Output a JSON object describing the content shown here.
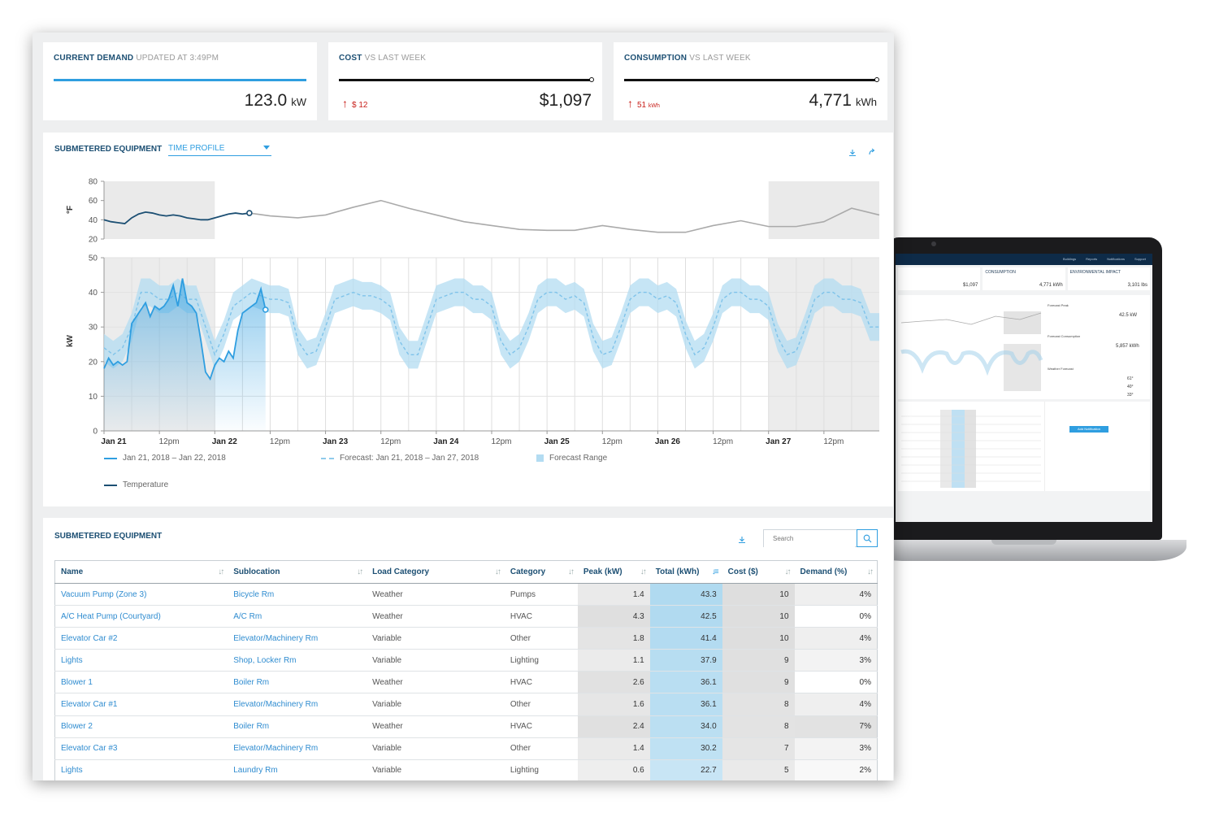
{
  "kpis": [
    {
      "title": "CURRENT DEMAND",
      "subtitle": "UPDATED AT 3:49PM",
      "value": "123.0",
      "unit": "kW"
    },
    {
      "title": "COST",
      "subtitle": "VS LAST WEEK",
      "value": "$1,097",
      "unit": "",
      "delta": "$ 12",
      "delta_unit": ""
    },
    {
      "title": "CONSUMPTION",
      "subtitle": "VS LAST WEEK",
      "value": "4,771",
      "unit": "kWh",
      "delta": "51",
      "delta_unit": "kWh"
    }
  ],
  "chart_panel": {
    "title": "SUBMETERED EQUIPMENT",
    "select_value": "TIME PROFILE",
    "download_icon": "download-icon",
    "share_icon": "share-icon",
    "legend": [
      "Jan 21, 2018 – Jan 22, 2018",
      "Forecast: Jan 21, 2018 – Jan 27, 2018",
      "Forecast Range",
      "Temperature"
    ]
  },
  "chart_data": [
    {
      "type": "line",
      "ylabel": "°F",
      "ylim": [
        20,
        80
      ],
      "yticks": [
        20,
        40,
        60,
        80
      ],
      "series": [
        {
          "name": "Temperature",
          "x": [
            0,
            3,
            6,
            9,
            12,
            15,
            18,
            21,
            24,
            27,
            30,
            33,
            36,
            39,
            42,
            45,
            48,
            51,
            54,
            57,
            60,
            63
          ],
          "values": [
            40,
            38,
            37,
            36,
            42,
            46,
            48,
            47,
            45,
            44,
            45,
            44,
            42,
            41,
            40,
            40,
            42,
            44,
            46,
            47,
            46,
            47
          ]
        },
        {
          "x": [
            63,
            72,
            84,
            96,
            108,
            120,
            132,
            144,
            156,
            168,
            180,
            192,
            204,
            216,
            228,
            240,
            252,
            264,
            276,
            288,
            300,
            312,
            324,
            336
          ],
          "values": [
            47,
            44,
            42,
            45,
            53,
            60,
            52,
            45,
            38,
            34,
            30,
            29,
            29,
            34,
            30,
            27,
            27,
            34,
            39,
            33,
            33,
            38,
            52,
            45
          ]
        }
      ]
    },
    {
      "type": "line",
      "ylabel": "kW",
      "ylim": [
        0,
        50
      ],
      "yticks": [
        0,
        10,
        20,
        30,
        40,
        50
      ],
      "xticks": [
        "Jan 21",
        "12pm",
        "Jan 22",
        "12pm",
        "Jan 23",
        "12pm",
        "Jan 24",
        "12pm",
        "Jan 25",
        "12pm",
        "Jan 26",
        "12pm",
        "Jan 27",
        "12pm"
      ],
      "series": [
        {
          "name": "Jan 21, 2018 – Jan 22, 2018",
          "x": [
            0,
            2,
            4,
            6,
            8,
            10,
            12,
            14,
            16,
            18,
            20,
            22,
            24,
            26,
            28,
            30,
            32,
            34,
            36,
            38,
            40,
            42,
            44,
            46,
            48,
            50,
            52,
            54,
            56,
            58,
            60,
            62,
            64,
            66,
            68,
            70
          ],
          "values": [
            18,
            21,
            19,
            20,
            19,
            20,
            31,
            33,
            35,
            37,
            33,
            36,
            35,
            36,
            38,
            42,
            36,
            44,
            37,
            36,
            34,
            26,
            17,
            15,
            19,
            21,
            20,
            23,
            21,
            29,
            34,
            35,
            36,
            37,
            41,
            35
          ]
        },
        {
          "name": "Forecast: Jan 21, 2018 – Jan 27, 2018",
          "x": [
            0,
            4,
            8,
            12,
            16,
            20,
            24,
            28,
            32,
            36,
            40,
            44,
            48,
            52,
            56,
            60,
            64,
            68,
            72,
            76,
            80,
            84,
            88,
            92,
            96,
            100,
            104,
            108,
            112,
            116,
            120,
            124,
            128,
            132,
            136,
            140,
            144,
            148,
            152,
            156,
            160,
            164,
            168,
            172,
            176,
            180,
            184,
            188,
            192,
            196,
            200,
            204,
            208,
            212,
            216,
            220,
            224,
            228,
            232,
            236,
            240,
            244,
            248,
            252,
            256,
            260,
            264,
            268,
            272,
            276,
            280,
            284,
            288,
            292,
            296,
            300,
            304,
            308,
            312,
            316,
            320,
            324,
            328,
            332,
            336
          ],
          "values": [
            24,
            22,
            24,
            30,
            40,
            40,
            38,
            38,
            40,
            38,
            38,
            30,
            22,
            28,
            36,
            38,
            40,
            39,
            38,
            38,
            37,
            26,
            22,
            23,
            30,
            38,
            39,
            40,
            39,
            39,
            38,
            36,
            26,
            22,
            22,
            30,
            38,
            39,
            40,
            40,
            38,
            38,
            36,
            26,
            22,
            24,
            30,
            38,
            40,
            40,
            38,
            39,
            37,
            27,
            22,
            23,
            30,
            38,
            40,
            40,
            38,
            39,
            37,
            28,
            22,
            24,
            30,
            38,
            40,
            40,
            38,
            38,
            36,
            27,
            22,
            23,
            30,
            38,
            40,
            40,
            38,
            38,
            37,
            30,
            30
          ]
        }
      ],
      "forecast_range": "±4 kW"
    }
  ],
  "table_panel": {
    "title": "SUBMETERED EQUIPMENT",
    "search_placeholder": "Search",
    "columns": [
      "Name",
      "Sublocation",
      "Load Category",
      "Category",
      "Peak (kW)",
      "Total (kWh)",
      "Cost ($)",
      "Demand (%)"
    ],
    "rows": [
      [
        "Vacuum Pump (Zone 3)",
        "Bicycle Rm",
        "Weather",
        "Pumps",
        "1.4",
        "43.3",
        "10",
        "4%"
      ],
      [
        "A/C Heat Pump (Courtyard)",
        "A/C Rm",
        "Weather",
        "HVAC",
        "4.3",
        "42.5",
        "10",
        "0%"
      ],
      [
        "Elevator Car #2",
        "Elevator/Machinery Rm",
        "Variable",
        "Other",
        "1.8",
        "41.4",
        "10",
        "4%"
      ],
      [
        "Lights",
        "Shop, Locker Rm",
        "Variable",
        "Lighting",
        "1.1",
        "37.9",
        "9",
        "3%"
      ],
      [
        "Blower 1",
        "Boiler Rm",
        "Weather",
        "HVAC",
        "2.6",
        "36.1",
        "9",
        "0%"
      ],
      [
        "Elevator Car #1",
        "Elevator/Machinery Rm",
        "Variable",
        "Other",
        "1.6",
        "36.1",
        "8",
        "4%"
      ],
      [
        "Blower 2",
        "Boiler Rm",
        "Weather",
        "HVAC",
        "2.4",
        "34.0",
        "8",
        "7%"
      ],
      [
        "Elevator Car #3",
        "Elevator/Machinery Rm",
        "Variable",
        "Other",
        "1.4",
        "30.2",
        "7",
        "3%"
      ],
      [
        "Lights",
        "Laundry Rm",
        "Variable",
        "Lighting",
        "0.6",
        "22.7",
        "5",
        "2%"
      ]
    ],
    "peak_shades": [
      0.5,
      0.95,
      0.75,
      0.45,
      0.85,
      0.65,
      0.9,
      0.5,
      0.3
    ],
    "total_shades": [
      1.0,
      0.98,
      0.95,
      0.87,
      0.83,
      0.83,
      0.78,
      0.7,
      0.52
    ],
    "cost_shades": [
      1.0,
      1.0,
      1.0,
      0.9,
      0.9,
      0.8,
      0.8,
      0.7,
      0.5
    ],
    "demand_shades": [
      0.55,
      0.0,
      0.55,
      0.4,
      0.0,
      0.55,
      1.0,
      0.4,
      0.25
    ]
  },
  "laptop": {
    "nav": [
      "Buildings",
      "Reports",
      "Notifications",
      "Support"
    ],
    "cards": [
      {
        "label": "",
        "value": "$1,097"
      },
      {
        "label": "CONSUMPTION",
        "value": "4,771 kWh"
      },
      {
        "label": "ENVIRONMENTAL IMPACT",
        "value": "3,101 lbs"
      }
    ],
    "side": [
      {
        "label": "Forecast Peak",
        "value": "42.5 kW"
      },
      {
        "label": "Forecast Consumption",
        "value": "5,857 kWh"
      },
      {
        "label": "Weather Forecast",
        "value": ""
      }
    ],
    "temps": [
      "61°",
      "40°",
      "33°"
    ],
    "button": "Add Notification"
  },
  "colors": {
    "accent": "#2f9ee0",
    "title": "#1c4f73",
    "alert": "#c8201b",
    "band": "#b3dcf2"
  }
}
